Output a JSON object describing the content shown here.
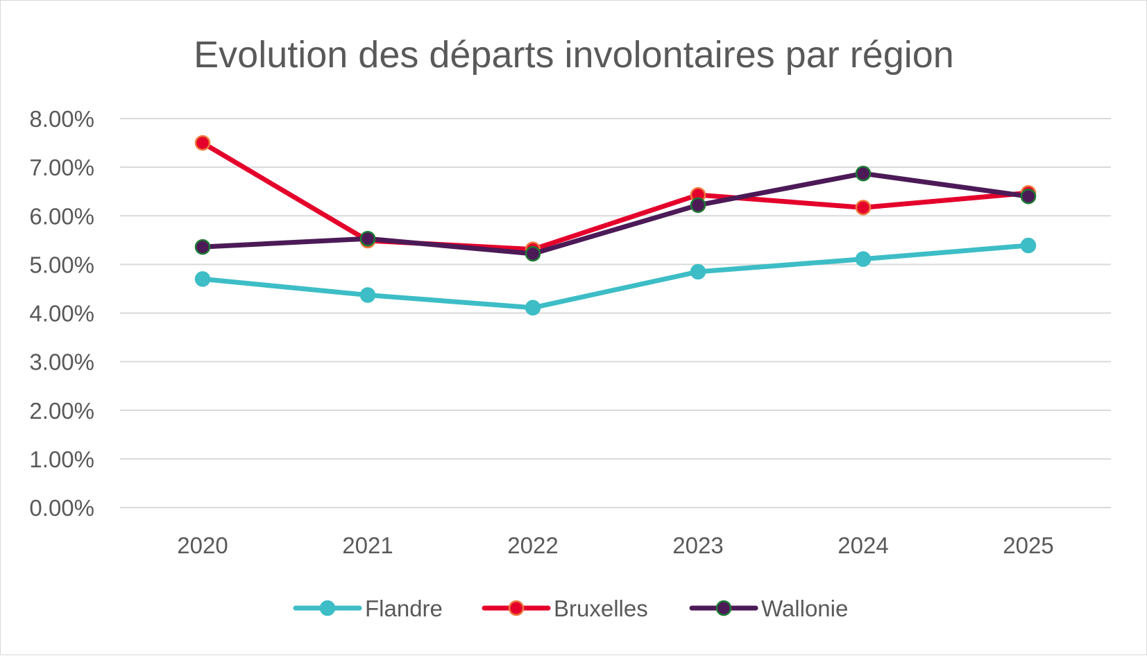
{
  "chart_data": {
    "type": "line",
    "title": "Evolution des départs involontaires par région",
    "xlabel": "",
    "ylabel": "",
    "categories": [
      "2020",
      "2021",
      "2022",
      "2023",
      "2024",
      "2025"
    ],
    "ylim": [
      0,
      0.08
    ],
    "yticks": [
      0,
      0.01,
      0.02,
      0.03,
      0.04,
      0.05,
      0.06,
      0.07,
      0.08
    ],
    "ytick_labels": [
      "0.00%",
      "1.00%",
      "2.00%",
      "3.00%",
      "4.00%",
      "5.00%",
      "6.00%",
      "7.00%",
      "8.00%"
    ],
    "grid": true,
    "legend_position": "bottom",
    "series": [
      {
        "name": "Flandre",
        "color": "#3dbdc6",
        "marker_edge": "#3dbdc6",
        "values": [
          0.047,
          0.0437,
          0.0411,
          0.0485,
          0.0511,
          0.0539
        ]
      },
      {
        "name": "Bruxelles",
        "color": "#e4002b",
        "marker_edge": "#f07b3f",
        "values": [
          0.075,
          0.0549,
          0.0531,
          0.0643,
          0.0617,
          0.0647
        ]
      },
      {
        "name": "Wallonie",
        "color": "#4c1a57",
        "marker_edge": "#1e7a34",
        "values": [
          0.0536,
          0.0553,
          0.0522,
          0.0622,
          0.0687,
          0.064
        ]
      }
    ]
  }
}
